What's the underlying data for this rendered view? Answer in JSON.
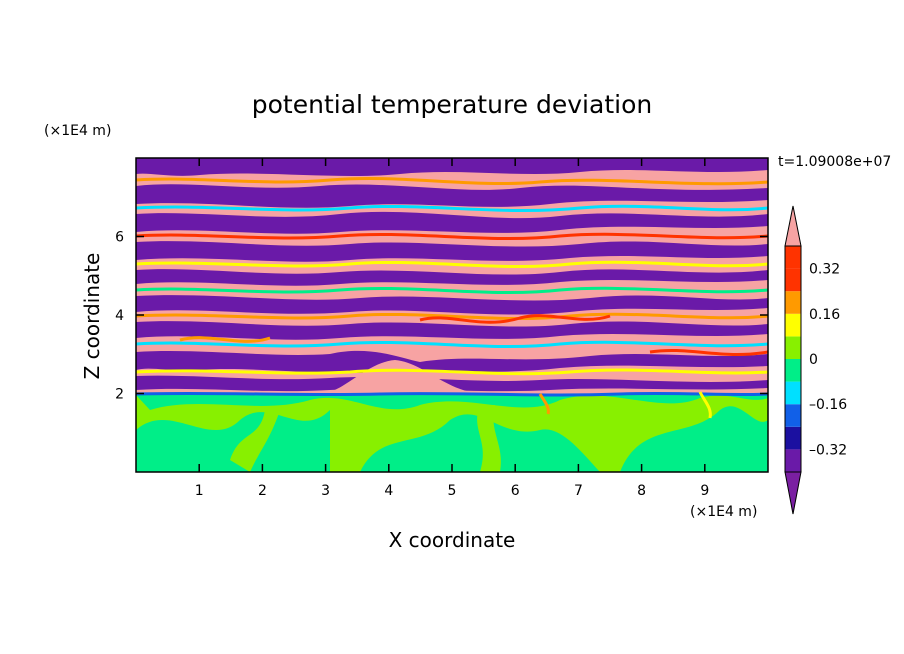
{
  "chart_data": {
    "type": "heatmap",
    "title": "potential temperature deviation",
    "xlabel": "X coordinate",
    "ylabel": "Z coordinate",
    "x_unit": "(×1E4 m)",
    "y_unit": "(×1E4 m)",
    "time_label": "t=1.09008e+07",
    "x_ticks": [
      "1",
      "2",
      "3",
      "4",
      "5",
      "6",
      "7",
      "8",
      "9"
    ],
    "y_ticks": [
      "2",
      "4",
      "6"
    ],
    "xlim": [
      0,
      10
    ],
    "ylim": [
      0,
      8
    ],
    "colorbar": {
      "tick_labels": [
        "0.32",
        "0.16",
        "0",
        "–0.16",
        "–0.32"
      ],
      "tick_values": [
        0.32,
        0.16,
        0,
        -0.16,
        -0.32
      ],
      "levels": [
        -0.4,
        -0.32,
        -0.24,
        -0.16,
        -0.08,
        0,
        0.08,
        0.16,
        0.24,
        0.32,
        0.4
      ],
      "colors": [
        "#7a1fa2",
        "#6a1aa8",
        "#1b10a0",
        "#1160e8",
        "#00e0ff",
        "#00ee88",
        "#88f000",
        "#ffff00",
        "#ff9a00",
        "#ff3300",
        "#f7a3a3"
      ],
      "extend": "both"
    },
    "field_description_colors": {
      "lower_layer_dominant": "#88f000",
      "lower_layer_secondary": "#00ee88",
      "upper_bands_a": "#f7a3a3",
      "upper_bands_b": "#6a1aa8"
    }
  }
}
